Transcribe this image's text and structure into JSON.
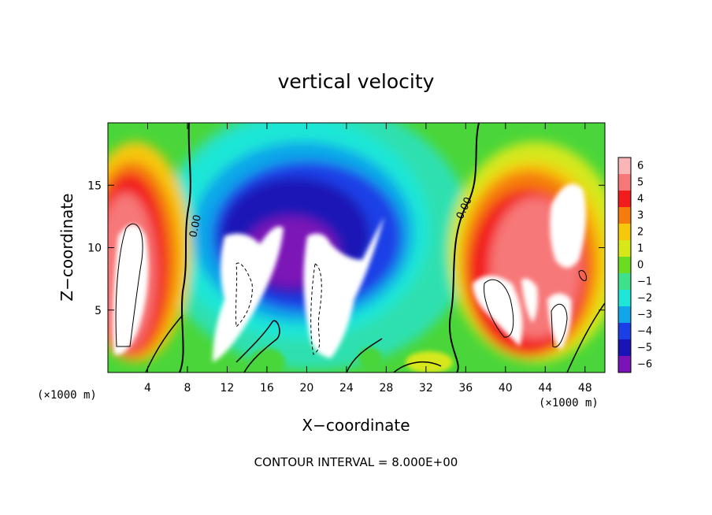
{
  "chart_data": {
    "type": "heatmap",
    "title": "vertical velocity",
    "xlabel": "X−coordinate",
    "ylabel": "Z−coordinate",
    "x_unit_left": "(×1000 m)",
    "x_unit_right": "(×1000 m)",
    "footer": "CONTOUR INTERVAL = 8.000E+00",
    "xlim": [
      0,
      50
    ],
    "ylim": [
      0,
      20
    ],
    "x_ticks": [
      4,
      8,
      12,
      16,
      20,
      24,
      28,
      32,
      36,
      40,
      44,
      48
    ],
    "x_tick_labels": [
      "4",
      "8",
      "12",
      "16",
      "20",
      "24",
      "28",
      "32",
      "36",
      "40",
      "44",
      "48"
    ],
    "y_ticks": [
      5,
      10,
      15
    ],
    "y_tick_labels": [
      "5",
      "10",
      "15"
    ],
    "colorbar": {
      "range": [
        -6,
        6
      ],
      "ticks": [
        6,
        5,
        4,
        3,
        2,
        1,
        0,
        -1,
        -2,
        -3,
        -4,
        -5,
        -6
      ],
      "labels": [
        "6",
        "5",
        "4",
        "3",
        "2",
        "1",
        "0",
        "−1",
        "−2",
        "−3",
        "−4",
        "−5",
        "−6"
      ],
      "colors": [
        "#f9b6b6",
        "#f77878",
        "#f21c1c",
        "#f57b0c",
        "#f6c70a",
        "#d6e81a",
        "#6bdc22",
        "#3ee08a",
        "#1fe6d7",
        "#11a6e9",
        "#1a3fe7",
        "#1a14b6",
        "#7b13b7"
      ]
    },
    "contour_labels": [
      "0.00",
      "0.00"
    ],
    "features": [
      {
        "kind": "updraft",
        "x_center": 2,
        "z_range": [
          1,
          17
        ],
        "peak": "above 6"
      },
      {
        "kind": "downdraft",
        "x_range": [
          10,
          30
        ],
        "z_range": [
          1,
          13.5
        ],
        "peak": "below -6"
      },
      {
        "kind": "updraft",
        "x_range": [
          37,
          50
        ],
        "z_range": [
          1,
          17
        ],
        "peak": "above 6"
      }
    ]
  }
}
